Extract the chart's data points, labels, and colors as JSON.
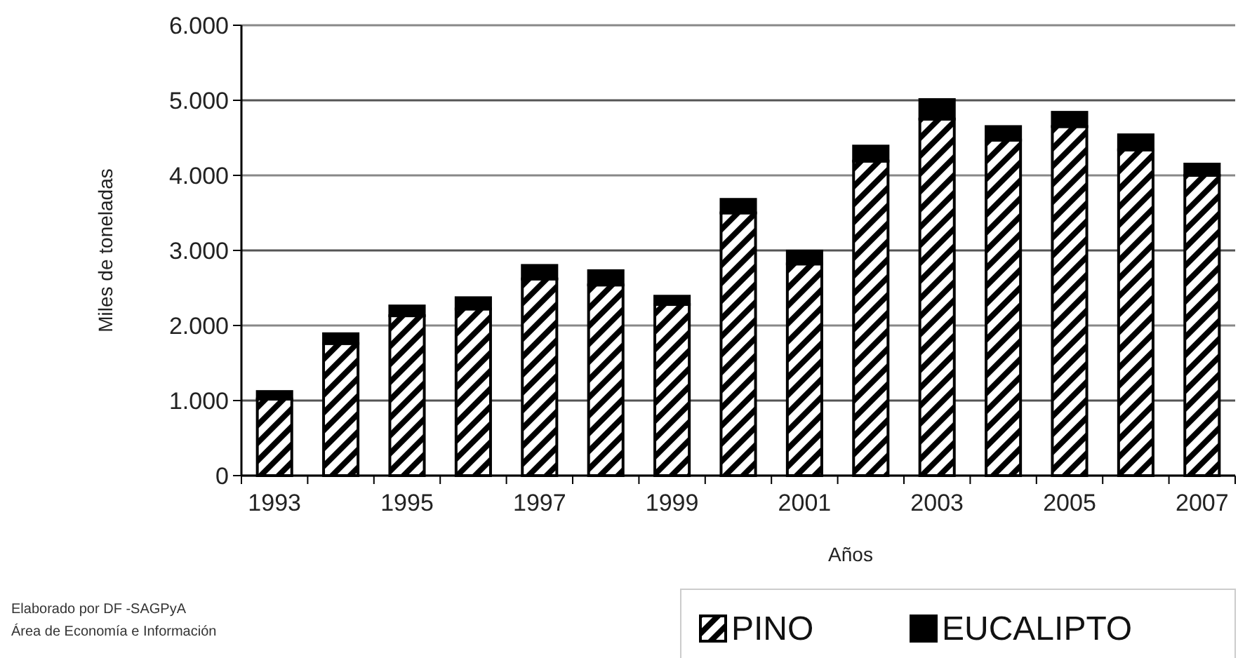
{
  "chart_data": {
    "type": "bar",
    "stacked": true,
    "categories": [
      "1993",
      null,
      "1995",
      null,
      "1997",
      null,
      "1999",
      null,
      "2001",
      null,
      "2003",
      null,
      "2005",
      null,
      "2007"
    ],
    "series": [
      {
        "name": "PINO",
        "color": "#000000",
        "values": [
          1020,
          1760,
          2130,
          2220,
          2620,
          2540,
          2280,
          3500,
          2820,
          4190,
          4750,
          4470,
          4650,
          4340,
          4000
        ]
      },
      {
        "name": "EUCALIPTO",
        "color": "#000000",
        "values": [
          100,
          130,
          130,
          150,
          180,
          190,
          110,
          180,
          170,
          200,
          260,
          180,
          190,
          200,
          150
        ]
      }
    ],
    "ylim": [
      0,
      6000
    ],
    "yticks": [
      0,
      {
        "value": 1000,
        "label": "1.000"
      },
      {
        "value": 2000,
        "label": "2.000"
      },
      {
        "value": 3000,
        "label": "3.000"
      },
      {
        "value": 4000,
        "label": "4.000"
      },
      {
        "value": 5000,
        "label": "5.000"
      },
      {
        "value": 6000,
        "label": "6.000"
      }
    ],
    "grid": "y",
    "legend": "bottom right",
    "xlabel": "Años",
    "ylabel": "Miles de toneladas",
    "annotations": [
      "Elaborado por DF -SAGPyA",
      "Área de Economía e Información"
    ]
  }
}
